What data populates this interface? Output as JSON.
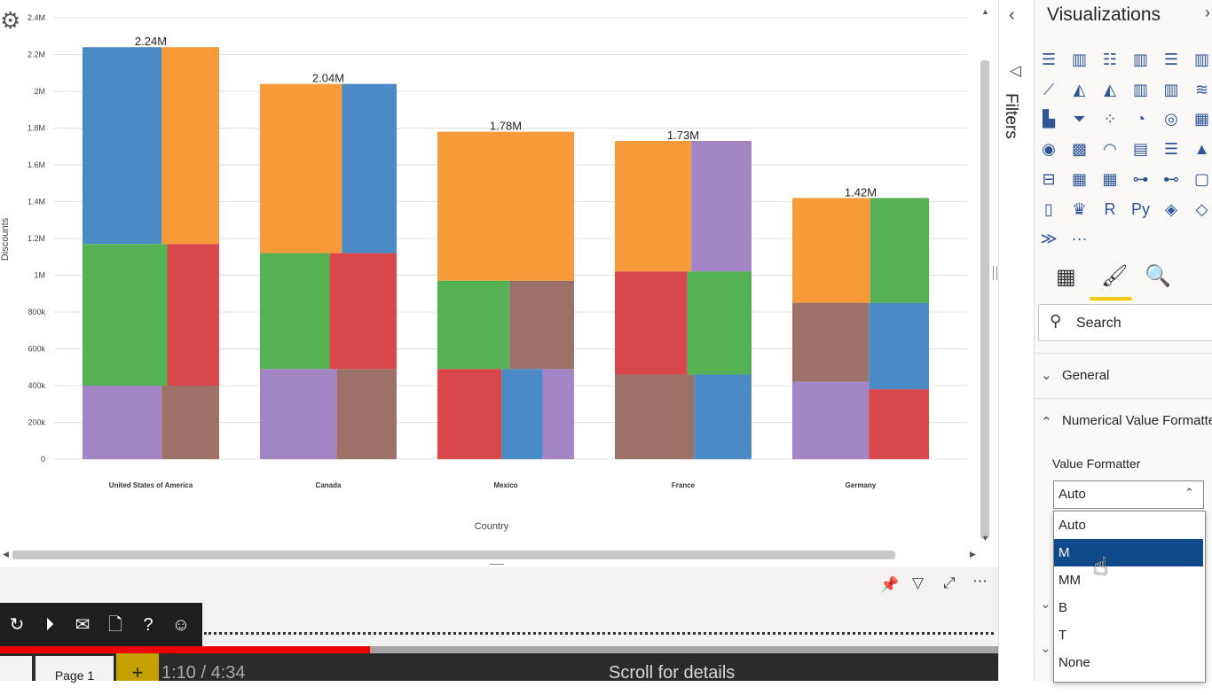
{
  "chart_data": {
    "type": "bar",
    "subtype": "stacked-column-segments",
    "categories": [
      "United States of America",
      "Canada",
      "Mexico",
      "France",
      "Germany"
    ],
    "totals": [
      2240000,
      2040000,
      1780000,
      1730000,
      1420000
    ],
    "total_labels": [
      "2.24M",
      "2.04M",
      "1.78M",
      "1.73M",
      "1.42M"
    ],
    "segments": [
      [
        {
          "color": "#4a8ac6",
          "min": 1170000,
          "max": 2240000,
          "start": 0.0,
          "end": 0.58
        },
        {
          "color": "#f79a3a",
          "min": 1170000,
          "max": 2240000,
          "start": 0.58,
          "end": 1.0
        },
        {
          "color": "#54b254",
          "min": 400000,
          "max": 1170000,
          "start": 0.0,
          "end": 0.62
        },
        {
          "color": "#d9484a",
          "min": 400000,
          "max": 1170000,
          "start": 0.62,
          "end": 1.0
        },
        {
          "color": "#a384c4",
          "min": 0,
          "max": 400000,
          "start": 0.0,
          "end": 0.58
        },
        {
          "color": "#9e7168",
          "min": 0,
          "max": 400000,
          "start": 0.58,
          "end": 1.0
        }
      ],
      [
        {
          "color": "#f79a3a",
          "min": 1120000,
          "max": 2040000,
          "start": 0.0,
          "end": 0.6
        },
        {
          "color": "#4a8ac6",
          "min": 1120000,
          "max": 2040000,
          "start": 0.6,
          "end": 1.0
        },
        {
          "color": "#54b254",
          "min": 490000,
          "max": 1120000,
          "start": 0.0,
          "end": 0.51
        },
        {
          "color": "#d9484a",
          "min": 490000,
          "max": 1120000,
          "start": 0.51,
          "end": 1.0
        },
        {
          "color": "#a384c4",
          "min": 0,
          "max": 490000,
          "start": 0.0,
          "end": 0.56
        },
        {
          "color": "#9e7168",
          "min": 0,
          "max": 490000,
          "start": 0.56,
          "end": 1.0
        }
      ],
      [
        {
          "color": "#f79a3a",
          "min": 970000,
          "max": 1780000,
          "start": 0.0,
          "end": 1.0
        },
        {
          "color": "#54b254",
          "min": 490000,
          "max": 970000,
          "start": 0.0,
          "end": 0.53
        },
        {
          "color": "#9e7168",
          "min": 490000,
          "max": 970000,
          "start": 0.53,
          "end": 1.0
        },
        {
          "color": "#d9484a",
          "min": 0,
          "max": 490000,
          "start": 0.0,
          "end": 0.47
        },
        {
          "color": "#4a8ac6",
          "min": 0,
          "max": 490000,
          "start": 0.47,
          "end": 0.77
        },
        {
          "color": "#a384c4",
          "min": 0,
          "max": 490000,
          "start": 0.77,
          "end": 1.0
        }
      ],
      [
        {
          "color": "#f79a3a",
          "min": 1020000,
          "max": 1730000,
          "start": 0.0,
          "end": 0.56
        },
        {
          "color": "#a384c4",
          "min": 1020000,
          "max": 1730000,
          "start": 0.56,
          "end": 1.0
        },
        {
          "color": "#d9484a",
          "min": 460000,
          "max": 1020000,
          "start": 0.0,
          "end": 0.53
        },
        {
          "color": "#54b254",
          "min": 460000,
          "max": 1020000,
          "start": 0.53,
          "end": 1.0
        },
        {
          "color": "#9e7168",
          "min": 0,
          "max": 460000,
          "start": 0.0,
          "end": 0.58
        },
        {
          "color": "#4a8ac6",
          "min": 0,
          "max": 460000,
          "start": 0.58,
          "end": 1.0
        }
      ],
      [
        {
          "color": "#f79a3a",
          "min": 850000,
          "max": 1420000,
          "start": 0.0,
          "end": 0.57
        },
        {
          "color": "#54b254",
          "min": 850000,
          "max": 1420000,
          "start": 0.57,
          "end": 1.0
        },
        {
          "color": "#9e7168",
          "min": 420000,
          "max": 850000,
          "start": 0.0,
          "end": 0.56
        },
        {
          "color": "#4a8ac6",
          "min": 380000,
          "max": 850000,
          "start": 0.56,
          "end": 1.0
        },
        {
          "color": "#a384c4",
          "min": 0,
          "max": 420000,
          "start": 0.0,
          "end": 0.56
        },
        {
          "color": "#d9484a",
          "min": 0,
          "max": 380000,
          "start": 0.56,
          "end": 1.0
        }
      ]
    ],
    "yticks": [
      0,
      200000,
      400000,
      600000,
      800000,
      1000000,
      1200000,
      1400000,
      1600000,
      1800000,
      2000000,
      2200000,
      2400000
    ],
    "ytick_labels": [
      "0",
      "200k",
      "400k",
      "600k",
      "800k",
      "1M",
      "1.2M",
      "1.4M",
      "1.6M",
      "1.8M",
      "2M",
      "2.2M",
      "2.4M"
    ],
    "ylim": [
      0,
      2400000
    ],
    "xlabel": "Country",
    "ylabel": "Discounts",
    "grid": true
  },
  "filters": {
    "label": "Filters"
  },
  "visualizations": {
    "title": "Visualizations",
    "icons": [
      "stacked-bar",
      "stacked-column",
      "clustered-bar",
      "clustered-column",
      "100-stacked-bar",
      "100-stacked-column",
      "line",
      "area",
      "stacked-area",
      "line-clustered-column",
      "line-stacked-column",
      "ribbon",
      "waterfall",
      "funnel",
      "scatter",
      "pie",
      "donut",
      "treemap",
      "map",
      "filled-map",
      "gauge",
      "card",
      "multi-row-card",
      "kpi",
      "slicer",
      "table",
      "matrix",
      "key-influencers",
      "decomposition-tree",
      "qa",
      "paginated-report",
      "trophy",
      "r-visual",
      "python-visual",
      "power-apps",
      "diamond",
      "power-automate",
      "more"
    ],
    "more_label": "···",
    "search_placeholder": "Search",
    "sections": {
      "general": "General",
      "numerical": "Numerical Value Formatter"
    },
    "value_formatter": {
      "label": "Value Formatter",
      "selected": "Auto",
      "options": [
        "Auto",
        "M",
        "MM",
        "B",
        "T",
        "None"
      ],
      "highlighted": "M"
    }
  },
  "page_tab": "Page 1",
  "add_page": "+",
  "timecode": "1:10 / 4:34",
  "scroll_hint": "Scroll for details"
}
